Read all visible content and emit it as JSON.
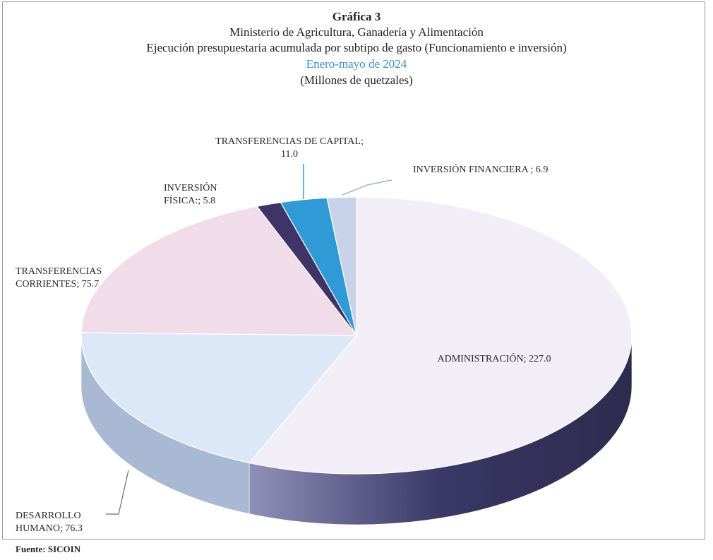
{
  "chart_data": {
    "type": "pie3d",
    "title": "Gráfica 3",
    "subtitle": "Ministerio de Agricultura, Ganadería y Alimentación",
    "subtitle2": "Ejecución presupuestaria acumulada  por  subtipo de gasto (Funcionamiento e inversión)",
    "period": "Enero-mayo de 2024",
    "units": "(Millones de quetzales)",
    "source": "Fuente: SICOIN",
    "categories": [
      "ADMINISTRACIÓN;",
      "DESARROLLO HUMANO;",
      "TRANSFERENCIAS CORRIENTES;",
      "INVERSIÓN FÍSICA:;",
      "TRANSFERENCIAS DE CAPITAL;",
      "INVERSIÓN FINANCIERA ;"
    ],
    "values": [
      227.0,
      76.3,
      75.7,
      5.8,
      11.0,
      6.9
    ],
    "value_labels": [
      "227.0",
      "76.3",
      "75.7",
      "5.8",
      "11.0",
      "6.9"
    ],
    "colors": [
      "#f1eef8",
      "#dce8f7",
      "#f1dcea",
      "#3e3468",
      "#2f9ad5",
      "#c8d2e8"
    ]
  }
}
